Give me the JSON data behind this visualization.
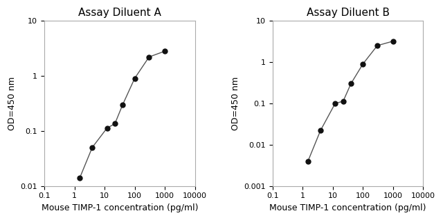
{
  "chart_a": {
    "title": "Assay Diluent A",
    "x": [
      1.5,
      3.9,
      12,
      22,
      40,
      100,
      300,
      1000
    ],
    "y": [
      0.014,
      0.05,
      0.112,
      0.135,
      0.3,
      0.9,
      2.2,
      2.8
    ],
    "xlim": [
      0.1,
      10000
    ],
    "ylim": [
      0.01,
      10
    ],
    "xlabel": "Mouse TIMP-1 concentration (pg/ml)",
    "ylabel": "OD=450 nm",
    "yticks": [
      0.01,
      0.1,
      1,
      10
    ],
    "ytick_labels": [
      "0.01",
      "0.1",
      "1",
      "10"
    ],
    "xticks": [
      0.1,
      1,
      10,
      100,
      1000,
      10000
    ],
    "xtick_labels": [
      "0.1",
      "1",
      "10",
      "100",
      "1000",
      "10000"
    ]
  },
  "chart_b": {
    "title": "Assay Diluent B",
    "x": [
      1.5,
      3.9,
      12,
      22,
      40,
      100,
      300,
      1000
    ],
    "y": [
      0.004,
      0.022,
      0.1,
      0.112,
      0.3,
      0.9,
      2.5,
      3.2
    ],
    "xlim": [
      0.1,
      10000
    ],
    "ylim": [
      0.001,
      10
    ],
    "xlabel": "Mouse TIMP-1 concentration (pg/ml)",
    "ylabel": "OD=450 nm",
    "yticks": [
      0.001,
      0.01,
      0.1,
      1,
      10
    ],
    "ytick_labels": [
      "0.001",
      "0.01",
      "0.1",
      "1",
      "10"
    ],
    "xticks": [
      0.1,
      1,
      10,
      100,
      1000,
      10000
    ],
    "xtick_labels": [
      "0.1",
      "1",
      "10",
      "100",
      "1000",
      "10000"
    ]
  },
  "line_color": "#555555",
  "marker_color": "#111111",
  "marker_size": 5,
  "line_width": 1.0,
  "title_fontsize": 11,
  "label_fontsize": 9,
  "tick_fontsize": 8
}
